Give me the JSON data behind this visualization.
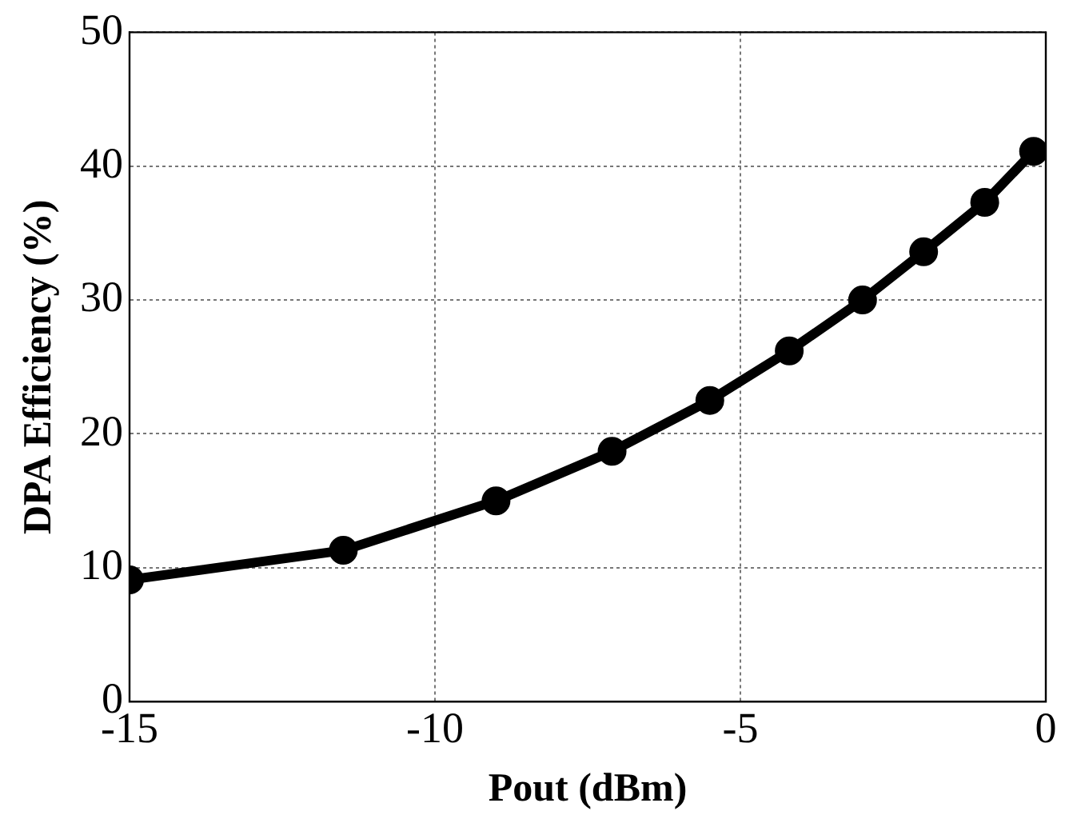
{
  "chart_data": {
    "type": "line",
    "xlabel": "Pout (dBm)",
    "ylabel": "DPA Efficiency (%)",
    "x": [
      -15,
      -11.5,
      -9,
      -7.1,
      -5.5,
      -4.2,
      -3,
      -2,
      -1,
      -0.2
    ],
    "series": [
      {
        "color": "#000000",
        "values": [
          9.1,
          11.3,
          15,
          18.7,
          22.5,
          26.2,
          30,
          33.6,
          37.3,
          41.1
        ]
      }
    ],
    "xlim": [
      -15,
      0
    ],
    "xticks": [
      -15,
      -10,
      -5,
      0
    ],
    "ylim": [
      0,
      50
    ],
    "yticks": [
      0,
      10,
      20,
      30,
      40,
      50
    ],
    "grid": true,
    "legend": false,
    "marker": "circle",
    "line_style": "solid"
  }
}
